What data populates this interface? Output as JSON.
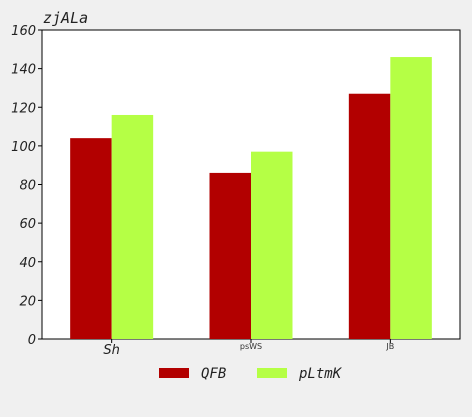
{
  "chart_data": {
    "type": "bar",
    "title": "zjALa",
    "xlabel": "",
    "ylabel": "",
    "categories": [
      "Sh",
      "psWS",
      "JB"
    ],
    "series": [
      {
        "name": "QFB",
        "color": "#b20000",
        "values": [
          104,
          86,
          127
        ]
      },
      {
        "name": "pLtmK",
        "color": "#b5ff45",
        "values": [
          116,
          97,
          146
        ]
      }
    ],
    "ylim": [
      0,
      160
    ],
    "yticks": [
      0,
      20,
      40,
      60,
      80,
      100,
      120,
      140,
      160
    ],
    "grid": false,
    "legend_position": "bottom-center"
  }
}
